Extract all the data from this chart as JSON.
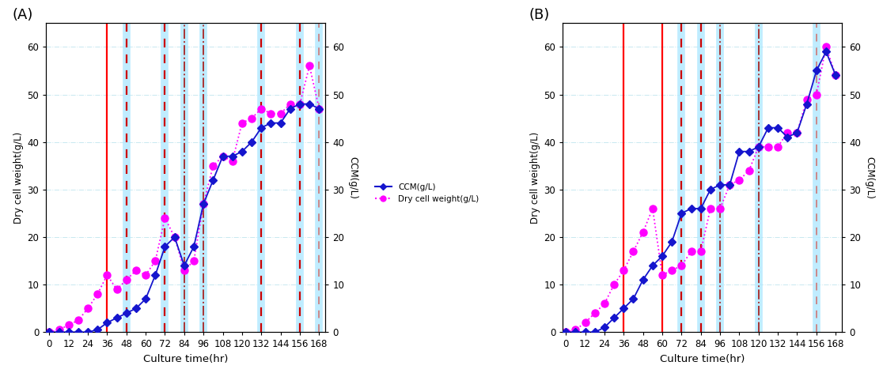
{
  "A": {
    "label": "(A)",
    "dcw_x": [
      0,
      6,
      12,
      18,
      24,
      30,
      36,
      42,
      48,
      54,
      60,
      66,
      72,
      78,
      84,
      90,
      96,
      102,
      108,
      114,
      120,
      126,
      132,
      138,
      144,
      150,
      156,
      162,
      168
    ],
    "dcw_y": [
      0,
      0.5,
      1.5,
      2.5,
      5,
      8,
      12,
      9,
      11,
      13,
      12,
      15,
      24,
      20,
      13,
      15,
      27,
      35,
      37,
      36,
      44,
      45,
      47,
      46,
      46,
      48,
      48,
      56,
      47
    ],
    "ccm_x": [
      0,
      6,
      12,
      18,
      24,
      30,
      36,
      42,
      48,
      54,
      60,
      66,
      72,
      78,
      84,
      90,
      96,
      102,
      108,
      114,
      120,
      126,
      132,
      138,
      144,
      150,
      156,
      162,
      168
    ],
    "ccm_y": [
      0,
      0,
      0,
      0,
      0,
      0.5,
      2,
      3,
      4,
      5,
      7,
      12,
      18,
      20,
      14,
      18,
      27,
      32,
      37,
      37,
      38,
      40,
      43,
      44,
      44,
      47,
      48,
      48,
      47
    ],
    "vlines_solid": [
      36
    ],
    "vlines_dark_dashed": [
      48,
      72,
      132,
      156
    ],
    "vlines_dashdot": [
      84,
      96
    ],
    "vlines_light_dashdot": [
      168
    ],
    "ylim": [
      0,
      65
    ],
    "yticks": [
      0,
      10,
      20,
      30,
      40,
      50,
      60
    ],
    "xticks": [
      0,
      12,
      24,
      36,
      48,
      60,
      72,
      84,
      96,
      108,
      120,
      132,
      144,
      156,
      168
    ]
  },
  "B": {
    "label": "(B)",
    "dcw_x": [
      0,
      6,
      12,
      18,
      24,
      30,
      36,
      42,
      48,
      54,
      60,
      66,
      72,
      78,
      84,
      90,
      96,
      102,
      108,
      114,
      120,
      126,
      132,
      138,
      144,
      150,
      156,
      162,
      168
    ],
    "dcw_y": [
      0,
      0.5,
      2,
      4,
      6,
      10,
      13,
      17,
      21,
      26,
      12,
      13,
      14,
      17,
      17,
      26,
      26,
      31,
      32,
      34,
      39,
      39,
      39,
      42,
      42,
      49,
      50,
      60,
      54
    ],
    "ccm_x": [
      0,
      6,
      12,
      18,
      24,
      30,
      36,
      42,
      48,
      54,
      60,
      66,
      72,
      78,
      84,
      90,
      96,
      102,
      108,
      114,
      120,
      126,
      132,
      138,
      144,
      150,
      156,
      162,
      168
    ],
    "ccm_y": [
      0,
      0,
      0,
      0,
      1,
      3,
      5,
      7,
      11,
      14,
      16,
      19,
      25,
      26,
      26,
      30,
      31,
      31,
      38,
      38,
      39,
      43,
      43,
      41,
      42,
      48,
      55,
      59,
      54
    ],
    "vlines_solid": [
      36,
      60
    ],
    "vlines_dark_dashed": [
      72,
      84
    ],
    "vlines_dashdot": [
      96,
      120
    ],
    "vlines_light_dashdot": [
      156
    ],
    "ylim": [
      0,
      65
    ],
    "yticks": [
      0,
      10,
      20,
      30,
      40,
      50,
      60
    ],
    "xticks": [
      0,
      12,
      24,
      36,
      48,
      60,
      72,
      84,
      96,
      108,
      120,
      132,
      144,
      156,
      168
    ]
  },
  "dcw_color": "#FF00FF",
  "ccm_color": "#1515CD",
  "vline_solid_color": "#FF0000",
  "vline_dark_dashed_color": "#CC0000",
  "vline_dashdot_color": "#AA3333",
  "vline_light_dashdot_color": "#CC8888",
  "lightblue_vline_color": "#B0E8FF",
  "xlabel": "Culture time(hr)",
  "ylabel_left": "Dry cell weight(g/L)",
  "ylabel_right": "CCM(g/L)",
  "legend_dcw": "Dry cell weight(g/L)",
  "legend_ccm": "CCM(g/L)",
  "grid_color": "#C8E8F0",
  "grid_style": "-.",
  "bg_color": "white"
}
